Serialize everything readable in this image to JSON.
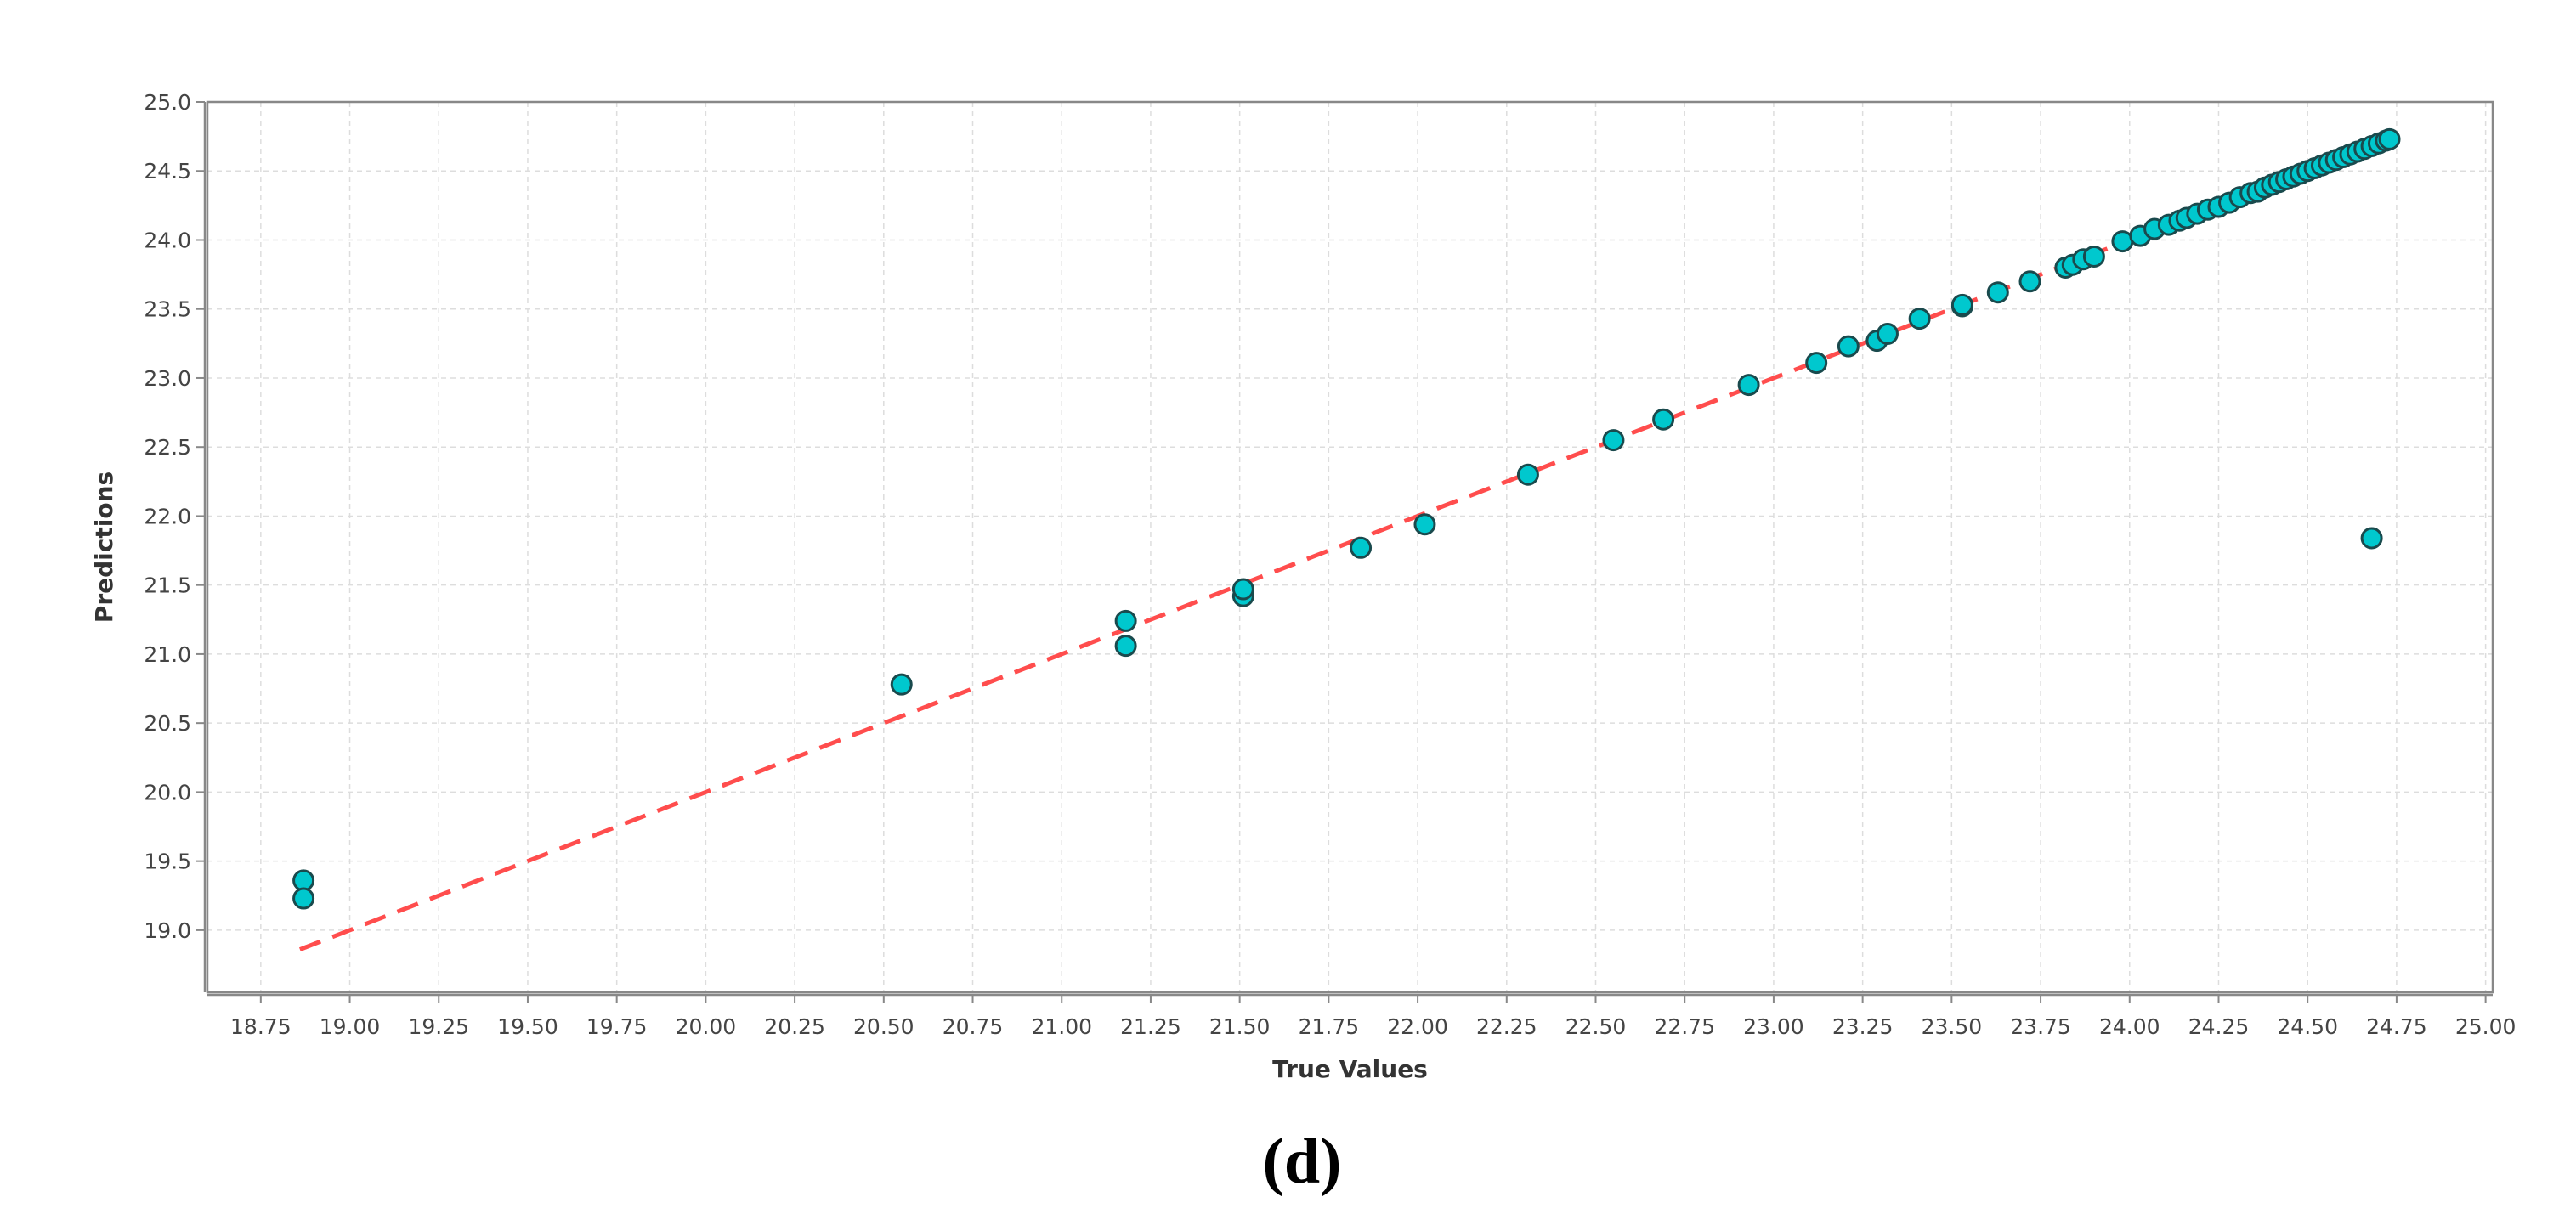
{
  "caption": "(d)",
  "colors": {
    "point_fill": "#00C8CE",
    "point_stroke": "#1A4A4D",
    "fit_line": "#FF4D4D",
    "grid": "#DDDDDD",
    "frame": "#888888"
  },
  "chart_data": {
    "type": "scatter",
    "title": "",
    "xlabel": "True Values",
    "ylabel": "Predictions",
    "xlim": [
      18.6,
      25.02
    ],
    "ylim": [
      18.55,
      25.0
    ],
    "xticks": [
      18.75,
      19.0,
      19.25,
      19.5,
      19.75,
      20.0,
      20.25,
      20.5,
      20.75,
      21.0,
      21.25,
      21.5,
      21.75,
      22.0,
      22.25,
      22.5,
      22.75,
      23.0,
      23.25,
      23.5,
      23.75,
      24.0,
      24.25,
      24.5,
      24.75,
      25.0
    ],
    "xtick_labels": [
      "18.75",
      "19.00",
      "19.25",
      "19.50",
      "19.75",
      "20.00",
      "20.25",
      "20.50",
      "20.75",
      "21.00",
      "21.25",
      "21.50",
      "21.75",
      "22.00",
      "22.25",
      "22.50",
      "22.75",
      "23.00",
      "23.25",
      "23.50",
      "23.75",
      "24.00",
      "24.25",
      "24.50",
      "24.75",
      "25.00"
    ],
    "yticks": [
      19.0,
      19.5,
      20.0,
      20.5,
      21.0,
      21.5,
      22.0,
      22.5,
      23.0,
      23.5,
      24.0,
      24.5,
      25.0
    ],
    "ytick_labels": [
      "19.0",
      "19.5",
      "20.0",
      "20.5",
      "21.0",
      "21.5",
      "22.0",
      "22.5",
      "23.0",
      "23.5",
      "24.0",
      "24.5",
      "25.0"
    ],
    "grid": true,
    "reference_line": {
      "style": "dashed",
      "x": [
        18.86,
        24.75
      ],
      "y": [
        18.86,
        24.75
      ]
    },
    "points": [
      [
        18.87,
        19.36
      ],
      [
        18.87,
        19.23
      ],
      [
        20.55,
        20.78
      ],
      [
        21.18,
        21.24
      ],
      [
        21.18,
        21.06
      ],
      [
        21.51,
        21.42
      ],
      [
        21.51,
        21.47
      ],
      [
        21.84,
        21.77
      ],
      [
        22.02,
        21.94
      ],
      [
        22.31,
        22.3
      ],
      [
        22.55,
        22.55
      ],
      [
        22.69,
        22.7
      ],
      [
        22.93,
        22.95
      ],
      [
        23.12,
        23.11
      ],
      [
        23.21,
        23.23
      ],
      [
        23.29,
        23.27
      ],
      [
        23.32,
        23.32
      ],
      [
        23.41,
        23.43
      ],
      [
        23.53,
        23.52
      ],
      [
        23.53,
        23.53
      ],
      [
        23.63,
        23.62
      ],
      [
        23.72,
        23.7
      ],
      [
        23.82,
        23.8
      ],
      [
        23.84,
        23.82
      ],
      [
        23.87,
        23.86
      ],
      [
        23.9,
        23.88
      ],
      [
        23.98,
        23.99
      ],
      [
        24.03,
        24.03
      ],
      [
        24.07,
        24.08
      ],
      [
        24.11,
        24.11
      ],
      [
        24.14,
        24.14
      ],
      [
        24.16,
        24.16
      ],
      [
        24.19,
        24.19
      ],
      [
        24.22,
        24.22
      ],
      [
        24.25,
        24.24
      ],
      [
        24.28,
        24.27
      ],
      [
        24.31,
        24.31
      ],
      [
        24.34,
        24.34
      ],
      [
        24.36,
        24.35
      ],
      [
        24.38,
        24.38
      ],
      [
        24.4,
        24.4
      ],
      [
        24.42,
        24.42
      ],
      [
        24.44,
        24.44
      ],
      [
        24.46,
        24.46
      ],
      [
        24.48,
        24.48
      ],
      [
        24.5,
        24.5
      ],
      [
        24.52,
        24.52
      ],
      [
        24.54,
        24.54
      ],
      [
        24.56,
        24.56
      ],
      [
        24.58,
        24.58
      ],
      [
        24.6,
        24.6
      ],
      [
        24.62,
        24.62
      ],
      [
        24.64,
        24.64
      ],
      [
        24.66,
        24.66
      ],
      [
        24.68,
        24.68
      ],
      [
        24.7,
        24.7
      ],
      [
        24.72,
        24.72
      ],
      [
        24.73,
        24.73
      ],
      [
        24.68,
        21.84
      ]
    ]
  }
}
